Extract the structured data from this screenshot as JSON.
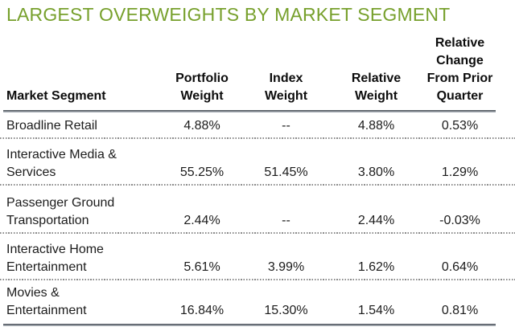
{
  "title": "LARGEST OVERWEIGHTS BY MARKET SEGMENT",
  "colors": {
    "title_accent": "#77A02C",
    "body_text": "#1c1c1c",
    "rule": "#565c64"
  },
  "table": {
    "headers": {
      "segment": "Market Segment",
      "portfolio": "Portfolio\nWeight",
      "index": "Index\nWeight",
      "relative": "Relative\nWeight",
      "change": "Relative\nChange\nFrom Prior\nQuarter"
    },
    "rows": [
      {
        "segment": "Broadline Retail",
        "portfolio": "4.88%",
        "index": "--",
        "relative": "4.88%",
        "change": "0.53%"
      },
      {
        "segment": "Interactive Media &\nServices",
        "portfolio": "55.25%",
        "index": "51.45%",
        "relative": "3.80%",
        "change": "1.29%"
      },
      {
        "segment": "Passenger Ground\nTransportation",
        "portfolio": "2.44%",
        "index": "--",
        "relative": "2.44%",
        "change": "-0.03%"
      },
      {
        "segment": "Interactive Home\nEntertainment",
        "portfolio": "5.61%",
        "index": "3.99%",
        "relative": "1.62%",
        "change": "0.64%"
      },
      {
        "segment": "Movies &\nEntertainment",
        "portfolio": "16.84%",
        "index": "15.30%",
        "relative": "1.54%",
        "change": "0.81%"
      }
    ]
  }
}
